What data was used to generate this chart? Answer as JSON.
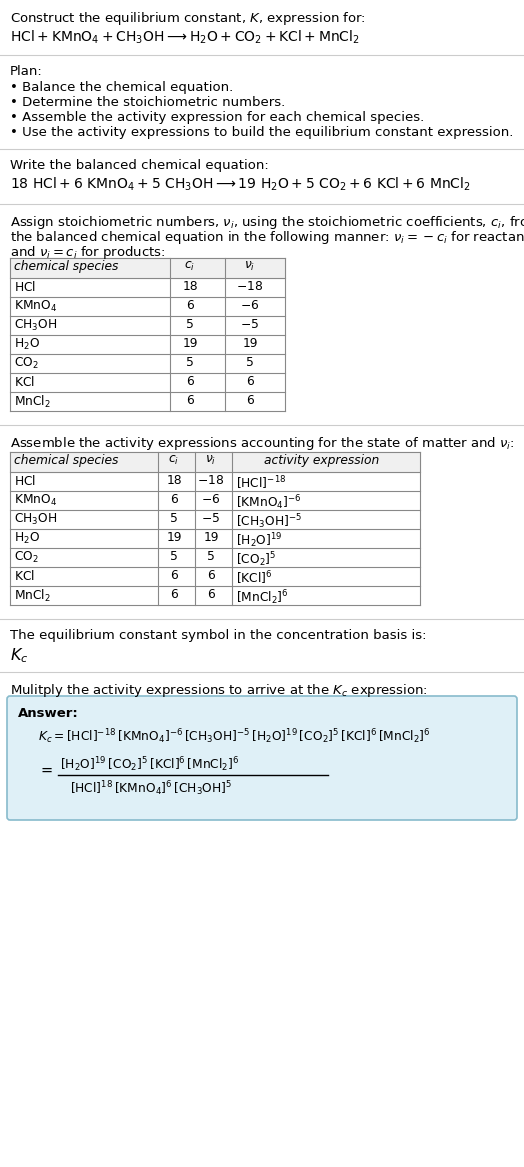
{
  "title_line1": "Construct the equilibrium constant, $K$, expression for:",
  "title_line2": "$\\mathrm{HCl + KMnO_4 + CH_3OH} \\longrightarrow \\mathrm{H_2O + CO_2 + KCl + MnCl_2}$",
  "plan_header": "Plan:",
  "plan_items": [
    "\\textbullet  Balance the chemical equation.",
    "\\textbullet  Determine the stoichiometric numbers.",
    "\\textbullet  Assemble the activity expression for each chemical species.",
    "\\textbullet  Use the activity expressions to build the equilibrium constant expression."
  ],
  "balanced_header": "Write the balanced chemical equation:",
  "balanced_eq": "$18\\ \\mathrm{HCl} + 6\\ \\mathrm{KMnO_4} + 5\\ \\mathrm{CH_3OH} \\longrightarrow 19\\ \\mathrm{H_2O} + 5\\ \\mathrm{CO_2} + 6\\ \\mathrm{KCl} + 6\\ \\mathrm{MnCl_2}$",
  "stoich_intro_1": "Assign stoichiometric numbers, $\\nu_i$, using the stoichiometric coefficients, $c_i$, from",
  "stoich_intro_2": "the balanced chemical equation in the following manner: $\\nu_i = -c_i$ for reactants",
  "stoich_intro_3": "and $\\nu_i = c_i$ for products:",
  "table1_headers": [
    "chemical species",
    "$c_i$",
    "$\\nu_i$"
  ],
  "table1_rows": [
    [
      "$\\mathrm{HCl}$",
      "18",
      "$-18$"
    ],
    [
      "$\\mathrm{KMnO_4}$",
      "6",
      "$-6$"
    ],
    [
      "$\\mathrm{CH_3OH}$",
      "5",
      "$-5$"
    ],
    [
      "$\\mathrm{H_2O}$",
      "19",
      "19"
    ],
    [
      "$\\mathrm{CO_2}$",
      "5",
      "5"
    ],
    [
      "$\\mathrm{KCl}$",
      "6",
      "6"
    ],
    [
      "$\\mathrm{MnCl_2}$",
      "6",
      "6"
    ]
  ],
  "activity_intro": "Assemble the activity expressions accounting for the state of matter and $\\nu_i$:",
  "table2_headers": [
    "chemical species",
    "$c_i$",
    "$\\nu_i$",
    "activity expression"
  ],
  "table2_rows": [
    [
      "$\\mathrm{HCl}$",
      "18",
      "$-18$",
      "$[\\mathrm{HCl}]^{-18}$"
    ],
    [
      "$\\mathrm{KMnO_4}$",
      "6",
      "$-6$",
      "$[\\mathrm{KMnO_4}]^{-6}$"
    ],
    [
      "$\\mathrm{CH_3OH}$",
      "5",
      "$-5$",
      "$[\\mathrm{CH_3OH}]^{-5}$"
    ],
    [
      "$\\mathrm{H_2O}$",
      "19",
      "19",
      "$[\\mathrm{H_2O}]^{19}$"
    ],
    [
      "$\\mathrm{CO_2}$",
      "5",
      "5",
      "$[\\mathrm{CO_2}]^{5}$"
    ],
    [
      "$\\mathrm{KCl}$",
      "6",
      "6",
      "$[\\mathrm{KCl}]^{6}$"
    ],
    [
      "$\\mathrm{MnCl_2}$",
      "6",
      "6",
      "$[\\mathrm{MnCl_2}]^{6}$"
    ]
  ],
  "kc_intro": "The equilibrium constant symbol in the concentration basis is:",
  "kc_symbol": "$K_c$",
  "multiply_intro": "Mulitply the activity expressions to arrive at the $K_c$ expression:",
  "answer_label": "Answer:",
  "kc_line1": "$K_c = [\\mathrm{HCl}]^{-18}\\,[\\mathrm{KMnO_4}]^{-6}\\,[\\mathrm{CH_3OH}]^{-5}\\,[\\mathrm{H_2O}]^{19}\\,[\\mathrm{CO_2}]^{5}\\,[\\mathrm{KCl}]^{6}\\,[\\mathrm{MnCl_2}]^{6}$",
  "kc_eq_lhs": "$= $",
  "kc_line2_num": "$[\\mathrm{H_2O}]^{19}\\,[\\mathrm{CO_2}]^{5}\\,[\\mathrm{KCl}]^{6}\\,[\\mathrm{MnCl_2}]^{6}$",
  "kc_line2_den": "$[\\mathrm{HCl}]^{18}\\,[\\mathrm{KMnO_4}]^{6}\\,[\\mathrm{CH_3OH}]^{5}$",
  "bg_color": "#ffffff",
  "text_color": "#000000",
  "table_line_color": "#888888",
  "answer_box_facecolor": "#dff0f7",
  "answer_box_edgecolor": "#88bbcc"
}
